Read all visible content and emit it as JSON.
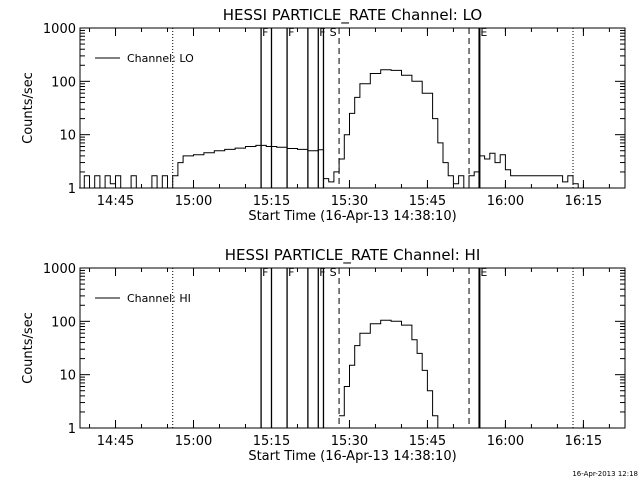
{
  "chart_data": [
    {
      "type": "line",
      "title": "HESSI PARTICLE_RATE Channel: LO",
      "xlabel": "Start Time (16-Apr-13 14:38:10)",
      "ylabel": "Counts/sec",
      "y_scale": "log",
      "ylim": [
        1,
        1000
      ],
      "xlim": [
        "14:38:10",
        "16:23:00"
      ],
      "x_ticks": [
        "14:45",
        "15:00",
        "15:15",
        "15:30",
        "15:45",
        "16:00",
        "16:15"
      ],
      "y_ticks": [
        "1",
        "10",
        "100",
        "1000"
      ],
      "legend": {
        "position": "top-left",
        "entries": [
          "Channel: LO"
        ]
      },
      "dotted_lines": [
        "14:56",
        "16:13"
      ],
      "dashed_lines": [
        "15:28",
        "15:53"
      ],
      "markers": [
        {
          "label": "F",
          "x_start": "15:13",
          "x_end": "15:15"
        },
        {
          "label": "F",
          "x_start": "15:18",
          "x_end": "15:22"
        },
        {
          "label": "F",
          "x_start": "15:24",
          "x_end": "15:25"
        },
        {
          "label": "S",
          "x": "15:26"
        },
        {
          "label": "E",
          "x": "15:55"
        }
      ],
      "series": [
        {
          "name": "Channel: LO",
          "points": [
            [
              "14:38",
              1
            ],
            [
              "14:39",
              1.7
            ],
            [
              "14:40",
              1
            ],
            [
              "14:41",
              1.7
            ],
            [
              "14:42",
              1
            ],
            [
              "14:43",
              1.7
            ],
            [
              "14:44",
              1.2
            ],
            [
              "14:45",
              1.7
            ],
            [
              "14:46",
              1
            ],
            [
              "14:47",
              1
            ],
            [
              "14:48",
              1.7
            ],
            [
              "14:49",
              1
            ],
            [
              "14:50",
              1
            ],
            [
              "14:51",
              1
            ],
            [
              "14:52",
              1.7
            ],
            [
              "14:53",
              1
            ],
            [
              "14:54",
              1.7
            ],
            [
              "14:55",
              1
            ],
            [
              "14:56",
              1.7
            ],
            [
              "14:57",
              3
            ],
            [
              "14:58",
              4
            ],
            [
              "15:00",
              4.2
            ],
            [
              "15:02",
              4.6
            ],
            [
              "15:04",
              5
            ],
            [
              "15:06",
              5.3
            ],
            [
              "15:08",
              5.6
            ],
            [
              "15:10",
              6
            ],
            [
              "15:12",
              6.3
            ],
            [
              "15:14",
              6
            ],
            [
              "15:16",
              5.8
            ],
            [
              "15:18",
              5.5
            ],
            [
              "15:20",
              5.3
            ],
            [
              "15:22",
              5
            ],
            [
              "15:24",
              5.2
            ],
            [
              "15:25",
              1.5
            ],
            [
              "15:26",
              1.3
            ],
            [
              "15:27",
              2
            ],
            [
              "15:28",
              3.5
            ],
            [
              "15:29",
              10
            ],
            [
              "15:30",
              25
            ],
            [
              "15:31",
              50
            ],
            [
              "15:32",
              90
            ],
            [
              "15:34",
              140
            ],
            [
              "15:36",
              165
            ],
            [
              "15:38",
              160
            ],
            [
              "15:40",
              130
            ],
            [
              "15:42",
              100
            ],
            [
              "15:44",
              60
            ],
            [
              "15:46",
              20
            ],
            [
              "15:47",
              7
            ],
            [
              "15:48",
              3
            ],
            [
              "15:49",
              1.7
            ],
            [
              "15:50",
              1.2
            ],
            [
              "15:51",
              1.7
            ],
            [
              "15:52",
              1
            ],
            [
              "15:53",
              1.7
            ],
            [
              "15:54",
              2
            ],
            [
              "15:55",
              4
            ],
            [
              "15:56",
              3.5
            ],
            [
              "15:57",
              4.5
            ],
            [
              "15:58",
              3
            ],
            [
              "15:59",
              4.2
            ],
            [
              "16:00",
              2.2
            ],
            [
              "16:01",
              1.7
            ],
            [
              "16:04",
              1.7
            ],
            [
              "16:08",
              1.7
            ],
            [
              "16:10",
              1.7
            ],
            [
              "16:11",
              1.3
            ],
            [
              "16:12",
              1.7
            ],
            [
              "16:13",
              1.2
            ],
            [
              "16:14",
              1
            ]
          ]
        }
      ]
    },
    {
      "type": "line",
      "title": "HESSI PARTICLE_RATE Channel: HI",
      "xlabel": "Start Time (16-Apr-13 14:38:10)",
      "ylabel": "Counts/sec",
      "y_scale": "log",
      "ylim": [
        1,
        1000
      ],
      "xlim": [
        "14:38:10",
        "16:23:00"
      ],
      "x_ticks": [
        "14:45",
        "15:00",
        "15:15",
        "15:30",
        "15:45",
        "16:00",
        "16:15"
      ],
      "y_ticks": [
        "1",
        "10",
        "100",
        "1000"
      ],
      "legend": {
        "position": "top-left",
        "entries": [
          "Channel: HI"
        ]
      },
      "dotted_lines": [
        "14:56",
        "16:13"
      ],
      "dashed_lines": [
        "15:28",
        "15:53"
      ],
      "markers": [
        {
          "label": "F",
          "x_start": "15:13",
          "x_end": "15:15"
        },
        {
          "label": "F",
          "x_start": "15:18",
          "x_end": "15:22"
        },
        {
          "label": "F",
          "x_start": "15:24",
          "x_end": "15:25"
        },
        {
          "label": "S",
          "x": "15:26"
        },
        {
          "label": "E",
          "x": "15:55"
        }
      ],
      "series": [
        {
          "name": "Channel: HI",
          "points": [
            [
              "15:28",
              1.7
            ],
            [
              "15:29",
              6
            ],
            [
              "15:30",
              15
            ],
            [
              "15:31",
              35
            ],
            [
              "15:32",
              60
            ],
            [
              "15:34",
              90
            ],
            [
              "15:36",
              105
            ],
            [
              "15:38",
              100
            ],
            [
              "15:40",
              85
            ],
            [
              "15:42",
              45
            ],
            [
              "15:43",
              25
            ],
            [
              "15:44",
              12
            ],
            [
              "15:45",
              5
            ],
            [
              "15:46",
              1.7
            ],
            [
              "15:47",
              1
            ]
          ]
        }
      ]
    }
  ],
  "timestamp": "16-Apr-2013 12:18"
}
